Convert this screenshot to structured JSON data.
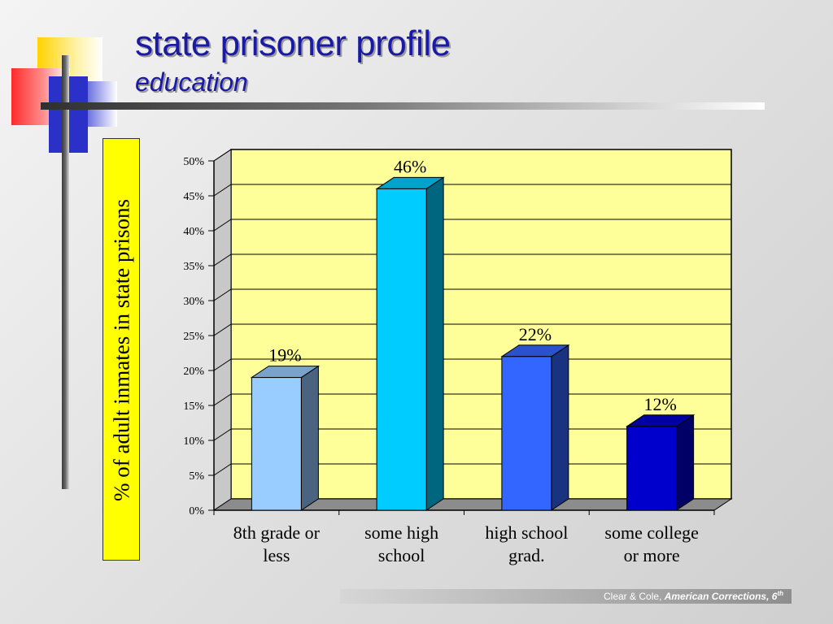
{
  "slide": {
    "title": "state prisoner profile",
    "subtitle": "education",
    "footer": {
      "authors": "Clear & Cole,",
      "book": "American Corrections, 6",
      "edition_suffix": "th"
    }
  },
  "chart_data": {
    "type": "bar",
    "ylabel": "% of adult inmates in state prisons",
    "categories": [
      [
        "8th grade or",
        "less"
      ],
      [
        "some high",
        "school"
      ],
      [
        "high school",
        "grad."
      ],
      [
        "some college",
        "or more"
      ]
    ],
    "values": [
      19,
      46,
      22,
      12
    ],
    "data_labels": [
      "19%",
      "46%",
      "22%",
      "12%"
    ],
    "y_ticks": [
      "0%",
      "5%",
      "10%",
      "15%",
      "20%",
      "25%",
      "30%",
      "35%",
      "40%",
      "45%",
      "50%"
    ],
    "ylim": [
      0,
      50
    ],
    "tick_step": 5,
    "grid": true,
    "colors": {
      "plot_background": "#ffff99",
      "bars": [
        {
          "front": "#99ccff",
          "side": "#4a6480",
          "top": "#7aa3cc"
        },
        {
          "front": "#00ccff",
          "side": "#006680",
          "top": "#00a3cc"
        },
        {
          "front": "#3366ff",
          "side": "#1a3380",
          "top": "#2952cc"
        },
        {
          "front": "#0000cc",
          "side": "#000066",
          "top": "#0000a3"
        }
      ]
    }
  }
}
